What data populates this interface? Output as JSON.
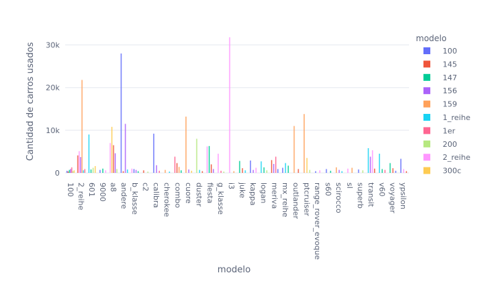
{
  "chart_data": {
    "type": "bar",
    "xlabel": "modelo",
    "ylabel": "Cantidad de carros usados",
    "ylim": [
      0,
      32500
    ],
    "yticks": [
      {
        "value": 0,
        "label": "0"
      },
      {
        "value": 10000,
        "label": "10k"
      },
      {
        "value": 20000,
        "label": "20k"
      },
      {
        "value": 30000,
        "label": "30k"
      }
    ],
    "grid": true,
    "legend_title": "modelo",
    "legend_position": "right",
    "categories": [
      "100",
      "2_reihe",
      "601",
      "9000",
      "a8",
      "andere",
      "b_klasse",
      "c2",
      "calibra",
      "cherokee",
      "combo",
      "cuore",
      "duster",
      "fiesta",
      "g_klasse",
      "i3",
      "juke",
      "kappa",
      "logan",
      "meriva",
      "mx_reihe",
      "outlander",
      "ptcruiser",
      "range_rover_evoque",
      "s60",
      "scirocco",
      "sl",
      "superb",
      "transit",
      "v60",
      "voyager",
      "ypsilon"
    ],
    "legend": [
      {
        "name": "100",
        "color": "#636efa"
      },
      {
        "name": "145",
        "color": "#ef553b"
      },
      {
        "name": "147",
        "color": "#00cc96"
      },
      {
        "name": "156",
        "color": "#ab63fa"
      },
      {
        "name": "159",
        "color": "#ffa15a"
      },
      {
        "name": "1_reihe",
        "color": "#19d3f3"
      },
      {
        "name": "1er",
        "color": "#ff6692"
      },
      {
        "name": "200",
        "color": "#b6e880"
      },
      {
        "name": "2_reihe",
        "color": "#ff97ff"
      },
      {
        "name": "300c",
        "color": "#fecb52"
      }
    ],
    "palette": [
      "#636efa",
      "#ef553b",
      "#00cc96",
      "#ab63fa",
      "#ffa15a",
      "#19d3f3",
      "#ff6692",
      "#b6e880",
      "#ff97ff",
      "#fecb52"
    ],
    "bars": [
      {
        "category": "100",
        "color": "#636efa",
        "value": 500
      },
      {
        "category": "100",
        "color": "#ef553b",
        "value": 350
      },
      {
        "category": "100",
        "color": "#00cc96",
        "value": 700
      },
      {
        "category": "100",
        "color": "#ab63fa",
        "value": 900
      },
      {
        "category": "100",
        "color": "#ff6692",
        "value": 1300
      },
      {
        "category": "100",
        "color": "#b6e880",
        "value": 400
      },
      {
        "category": "100",
        "color": "#fecb52",
        "value": 600
      },
      {
        "category": "2_reihe",
        "color": "#ef553b",
        "value": 4100
      },
      {
        "category": "2_reihe",
        "color": "#ff97ff",
        "value": 5100
      },
      {
        "category": "2_reihe",
        "color": "#ab63fa",
        "value": 3700
      },
      {
        "category": "2_reihe",
        "color": "#ffa15a",
        "value": 21800
      },
      {
        "category": "2_reihe",
        "color": "#19d3f3",
        "value": 600
      },
      {
        "category": "2_reihe",
        "color": "#ff6692",
        "value": 900
      },
      {
        "category": "601",
        "color": "#19d3f3",
        "value": 9000
      },
      {
        "category": "601",
        "color": "#00cc96",
        "value": 800
      },
      {
        "category": "601",
        "color": "#b6e880",
        "value": 1200
      },
      {
        "category": "601",
        "color": "#fecb52",
        "value": 1600
      },
      {
        "category": "9000",
        "color": "#636efa",
        "value": 700
      },
      {
        "category": "9000",
        "color": "#00cc96",
        "value": 1000
      },
      {
        "category": "9000",
        "color": "#ff97ff",
        "value": 600
      },
      {
        "category": "a8",
        "color": "#ff97ff",
        "value": 7000
      },
      {
        "category": "a8",
        "color": "#fecb52",
        "value": 10800
      },
      {
        "category": "a8",
        "color": "#ef553b",
        "value": 6500
      },
      {
        "category": "a8",
        "color": "#ab63fa",
        "value": 4600
      },
      {
        "category": "a8",
        "color": "#b6e880",
        "value": 900
      },
      {
        "category": "andere",
        "color": "#636efa",
        "value": 28000
      },
      {
        "category": "andere",
        "color": "#ef553b",
        "value": 400
      },
      {
        "category": "andere",
        "color": "#ab63fa",
        "value": 11500
      },
      {
        "category": "andere",
        "color": "#19d3f3",
        "value": 800
      },
      {
        "category": "b_klasse",
        "color": "#ff97ff",
        "value": 1000
      },
      {
        "category": "b_klasse",
        "color": "#636efa",
        "value": 900
      },
      {
        "category": "b_klasse",
        "color": "#ab63fa",
        "value": 700
      },
      {
        "category": "b_klasse",
        "color": "#00cc96",
        "value": 400
      },
      {
        "category": "c2",
        "color": "#ef553b",
        "value": 600
      },
      {
        "category": "c2",
        "color": "#b6e880",
        "value": 300
      },
      {
        "category": "calibra",
        "color": "#636efa",
        "value": 9200
      },
      {
        "category": "calibra",
        "color": "#ab63fa",
        "value": 1800
      },
      {
        "category": "calibra",
        "color": "#ff6692",
        "value": 500
      },
      {
        "category": "cherokee",
        "color": "#ffa15a",
        "value": 700
      },
      {
        "category": "cherokee",
        "color": "#19d3f3",
        "value": 300
      },
      {
        "category": "combo",
        "color": "#ff6692",
        "value": 3800
      },
      {
        "category": "combo",
        "color": "#ef553b",
        "value": 2300
      },
      {
        "category": "combo",
        "color": "#ffa15a",
        "value": 1400
      },
      {
        "category": "combo",
        "color": "#00cc96",
        "value": 600
      },
      {
        "category": "cuore",
        "color": "#ffa15a",
        "value": 13200
      },
      {
        "category": "cuore",
        "color": "#ab63fa",
        "value": 800
      },
      {
        "category": "cuore",
        "color": "#fecb52",
        "value": 500
      },
      {
        "category": "duster",
        "color": "#b6e880",
        "value": 8000
      },
      {
        "category": "duster",
        "color": "#19d3f3",
        "value": 700
      },
      {
        "category": "duster",
        "color": "#ef553b",
        "value": 400
      },
      {
        "category": "fiesta",
        "color": "#ff97ff",
        "value": 6200
      },
      {
        "category": "fiesta",
        "color": "#00cc96",
        "value": 6300
      },
      {
        "category": "fiesta",
        "color": "#ef553b",
        "value": 2000
      },
      {
        "category": "fiesta",
        "color": "#ab63fa",
        "value": 900
      },
      {
        "category": "g_klasse",
        "color": "#ff97ff",
        "value": 4500
      },
      {
        "category": "g_klasse",
        "color": "#ff6692",
        "value": 500
      },
      {
        "category": "g_klasse",
        "color": "#b6e880",
        "value": 300
      },
      {
        "category": "i3",
        "color": "#ff97ff",
        "value": 31800
      },
      {
        "category": "i3",
        "color": "#ffa15a",
        "value": 400
      },
      {
        "category": "juke",
        "color": "#00cc96",
        "value": 2800
      },
      {
        "category": "juke",
        "color": "#ef553b",
        "value": 1100
      },
      {
        "category": "juke",
        "color": "#19d3f3",
        "value": 600
      },
      {
        "category": "kappa",
        "color": "#636efa",
        "value": 2900
      },
      {
        "category": "kappa",
        "color": "#ab63fa",
        "value": 700
      },
      {
        "category": "kappa",
        "color": "#ff97ff",
        "value": 1200
      },
      {
        "category": "logan",
        "color": "#19d3f3",
        "value": 2700
      },
      {
        "category": "logan",
        "color": "#00cc96",
        "value": 1300
      },
      {
        "category": "logan",
        "color": "#b6e880",
        "value": 600
      },
      {
        "category": "meriva",
        "color": "#ef553b",
        "value": 3000
      },
      {
        "category": "meriva",
        "color": "#ab63fa",
        "value": 2100
      },
      {
        "category": "meriva",
        "color": "#ff6692",
        "value": 3800
      },
      {
        "category": "meriva",
        "color": "#636efa",
        "value": 900
      },
      {
        "category": "mx_reihe",
        "color": "#636efa",
        "value": 1200
      },
      {
        "category": "mx_reihe",
        "color": "#19d3f3",
        "value": 2300
      },
      {
        "category": "mx_reihe",
        "color": "#00cc96",
        "value": 1700
      },
      {
        "category": "outlander",
        "color": "#ffa15a",
        "value": 11000
      },
      {
        "category": "outlander",
        "color": "#ef553b",
        "value": 900
      },
      {
        "category": "ptcruiser",
        "color": "#ffa15a",
        "value": 13800
      },
      {
        "category": "ptcruiser",
        "color": "#fecb52",
        "value": 3500
      },
      {
        "category": "ptcruiser",
        "color": "#b6e880",
        "value": 700
      },
      {
        "category": "range_rover_evoque",
        "color": "#636efa",
        "value": 400
      },
      {
        "category": "range_rover_evoque",
        "color": "#ff97ff",
        "value": 600
      },
      {
        "category": "s60",
        "color": "#636efa",
        "value": 900
      },
      {
        "category": "s60",
        "color": "#00cc96",
        "value": 500
      },
      {
        "category": "scirocco",
        "color": "#ffa15a",
        "value": 1300
      },
      {
        "category": "scirocco",
        "color": "#ab63fa",
        "value": 700
      },
      {
        "category": "scirocco",
        "color": "#19d3f3",
        "value": 400
      },
      {
        "category": "sl",
        "color": "#ff97ff",
        "value": 1000
      },
      {
        "category": "sl",
        "color": "#ffa15a",
        "value": 1200
      },
      {
        "category": "superb",
        "color": "#636efa",
        "value": 800
      },
      {
        "category": "superb",
        "color": "#b6e880",
        "value": 600
      },
      {
        "category": "transit",
        "color": "#19d3f3",
        "value": 5800
      },
      {
        "category": "transit",
        "color": "#ab63fa",
        "value": 3800
      },
      {
        "category": "transit",
        "color": "#ff97ff",
        "value": 5300
      },
      {
        "category": "transit",
        "color": "#ef553b",
        "value": 1000
      },
      {
        "category": "v60",
        "color": "#19d3f3",
        "value": 4500
      },
      {
        "category": "v60",
        "color": "#00cc96",
        "value": 900
      },
      {
        "category": "v60",
        "color": "#ff6692",
        "value": 700
      },
      {
        "category": "voyager",
        "color": "#00cc96",
        "value": 2300
      },
      {
        "category": "voyager",
        "color": "#ef553b",
        "value": 1100
      },
      {
        "category": "voyager",
        "color": "#636efa",
        "value": 500
      },
      {
        "category": "ypsilon",
        "color": "#636efa",
        "value": 3300
      },
      {
        "category": "ypsilon",
        "color": "#ff97ff",
        "value": 900
      },
      {
        "category": "ypsilon",
        "color": "#ef553b",
        "value": 400
      }
    ]
  }
}
